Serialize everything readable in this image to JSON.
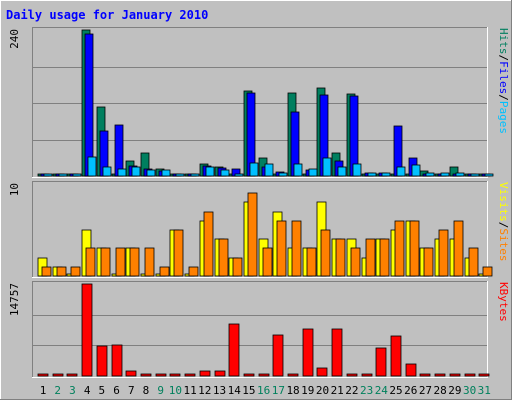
{
  "title": "Daily usage for January 2010",
  "colors": {
    "background": "#c0c0c0",
    "frame_light": "#ffffff",
    "frame_dark": "#808080",
    "title": "#0000ff",
    "grid": "#808080",
    "hits": "#007f5f",
    "files": "#0000ff",
    "pages": "#00c0ff",
    "visits": "#ffff00",
    "sites": "#ff8000",
    "kbytes": "#ff0000",
    "day_weekday": "#000000",
    "day_weekend": "#00805c",
    "label_slash": "#000000"
  },
  "chart_data": [
    {
      "type": "bar",
      "panel": "top",
      "y_max_label": "240",
      "ylim": [
        0,
        240
      ],
      "series": [
        {
          "name": "Hits",
          "values": [
            0,
            0,
            0,
            240,
            113,
            0,
            25,
            37,
            12,
            0,
            0,
            20,
            15,
            0,
            140,
            29,
            0,
            136,
            0,
            145,
            37,
            134,
            0,
            0,
            0,
            0,
            8,
            0,
            15,
            0,
            0
          ]
        },
        {
          "name": "Files",
          "values": [
            0,
            0,
            0,
            233,
            74,
            84,
            16,
            12,
            9,
            0,
            0,
            17,
            13,
            11,
            136,
            14,
            6,
            106,
            10,
            133,
            24,
            131,
            5,
            5,
            82,
            30,
            0,
            0,
            0,
            0,
            0
          ]
        },
        {
          "name": "Pages",
          "values": [
            2,
            2,
            0,
            31,
            15,
            11,
            15,
            10,
            10,
            0,
            0,
            14,
            10,
            0,
            21,
            19,
            5,
            20,
            12,
            30,
            14,
            19,
            5,
            5,
            15,
            18,
            5,
            5,
            5,
            2,
            2
          ]
        }
      ],
      "legend": [
        "Pages",
        "Files",
        "Hits"
      ]
    },
    {
      "type": "bar",
      "panel": "middle",
      "y_max_label": "10",
      "ylim": [
        0,
        10
      ],
      "series": [
        {
          "name": "Visits",
          "values": [
            2,
            1,
            0,
            5,
            3,
            0,
            3,
            0,
            0,
            5,
            0,
            6,
            4,
            2,
            8,
            4,
            7,
            3,
            3,
            8,
            4,
            4,
            2,
            4,
            5,
            6,
            3,
            4,
            4,
            2,
            0
          ]
        },
        {
          "name": "Sites",
          "values": [
            1,
            1,
            1,
            3,
            3,
            3,
            3,
            3,
            1,
            5,
            1,
            7,
            4,
            2,
            9,
            3,
            6,
            6,
            3,
            5,
            4,
            3,
            4,
            4,
            6,
            6,
            3,
            5,
            6,
            3,
            1
          ]
        }
      ],
      "legend": [
        "Sites",
        "Visits"
      ]
    },
    {
      "type": "bar",
      "panel": "bottom",
      "y_max_label": "14757",
      "ylim": [
        0,
        14757
      ],
      "series": [
        {
          "name": "KBytes",
          "values": [
            0,
            0,
            0,
            14757,
            4800,
            5000,
            800,
            100,
            100,
            0,
            100,
            800,
            800,
            8300,
            100,
            100,
            6600,
            100,
            7600,
            1300,
            7600,
            100,
            100,
            4500,
            6400,
            2000,
            100,
            100,
            100,
            100,
            100
          ]
        }
      ],
      "legend": [
        "KBytes"
      ]
    }
  ],
  "x_days": [
    "1",
    "2",
    "3",
    "4",
    "5",
    "6",
    "7",
    "8",
    "9",
    "10",
    "11",
    "12",
    "13",
    "14",
    "15",
    "16",
    "17",
    "18",
    "19",
    "20",
    "21",
    "22",
    "23",
    "24",
    "25",
    "26",
    "27",
    "28",
    "29",
    "30",
    "31"
  ],
  "weekend_days": [
    2,
    3,
    9,
    10,
    16,
    17,
    23,
    24,
    30,
    31
  ]
}
